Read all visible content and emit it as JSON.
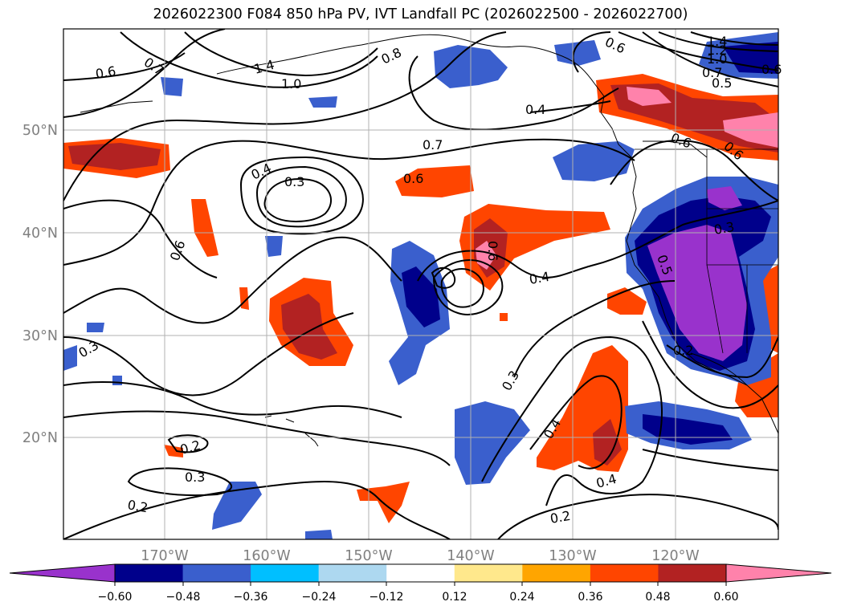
{
  "title": "2026022300 F084 850 hPa PV, IVT Landfall PC (2026022500 - 2026022700)",
  "map": {
    "lon_labels": [
      "170°W",
      "160°W",
      "150°W",
      "140°W",
      "130°W",
      "120°W"
    ],
    "lat_labels": [
      "50°N",
      "40°N",
      "30°N",
      "20°N"
    ],
    "contour_labels": [
      "0.7",
      "0.6",
      "1.4",
      "1.0",
      "0.8",
      "0.6",
      "0.4",
      "1.4",
      "1.2",
      "1.0",
      "0.7",
      "0.5",
      "0.6",
      "0.7",
      "0.6",
      "0.4",
      "0.3",
      "0.6",
      "0.6",
      "0.6",
      "0.4",
      "0.3",
      "0.3",
      "0.4",
      "0.4",
      "0.2",
      "0.2",
      "0.3",
      "0.2",
      "0.3",
      "0.5",
      "0.2",
      "0.6"
    ]
  },
  "colorbar": {
    "ticks": [
      "−0.60",
      "−0.48",
      "−0.36",
      "−0.24",
      "−0.12",
      "0.12",
      "0.24",
      "0.36",
      "0.48",
      "0.60"
    ],
    "colors": [
      "#9932cc",
      "#00008b",
      "#3a5fcd",
      "#00bfff",
      "#add8f0",
      "#ffffff",
      "#ffe88c",
      "#ffa500",
      "#ff4500",
      "#b22222",
      "#ff82ab"
    ]
  }
}
